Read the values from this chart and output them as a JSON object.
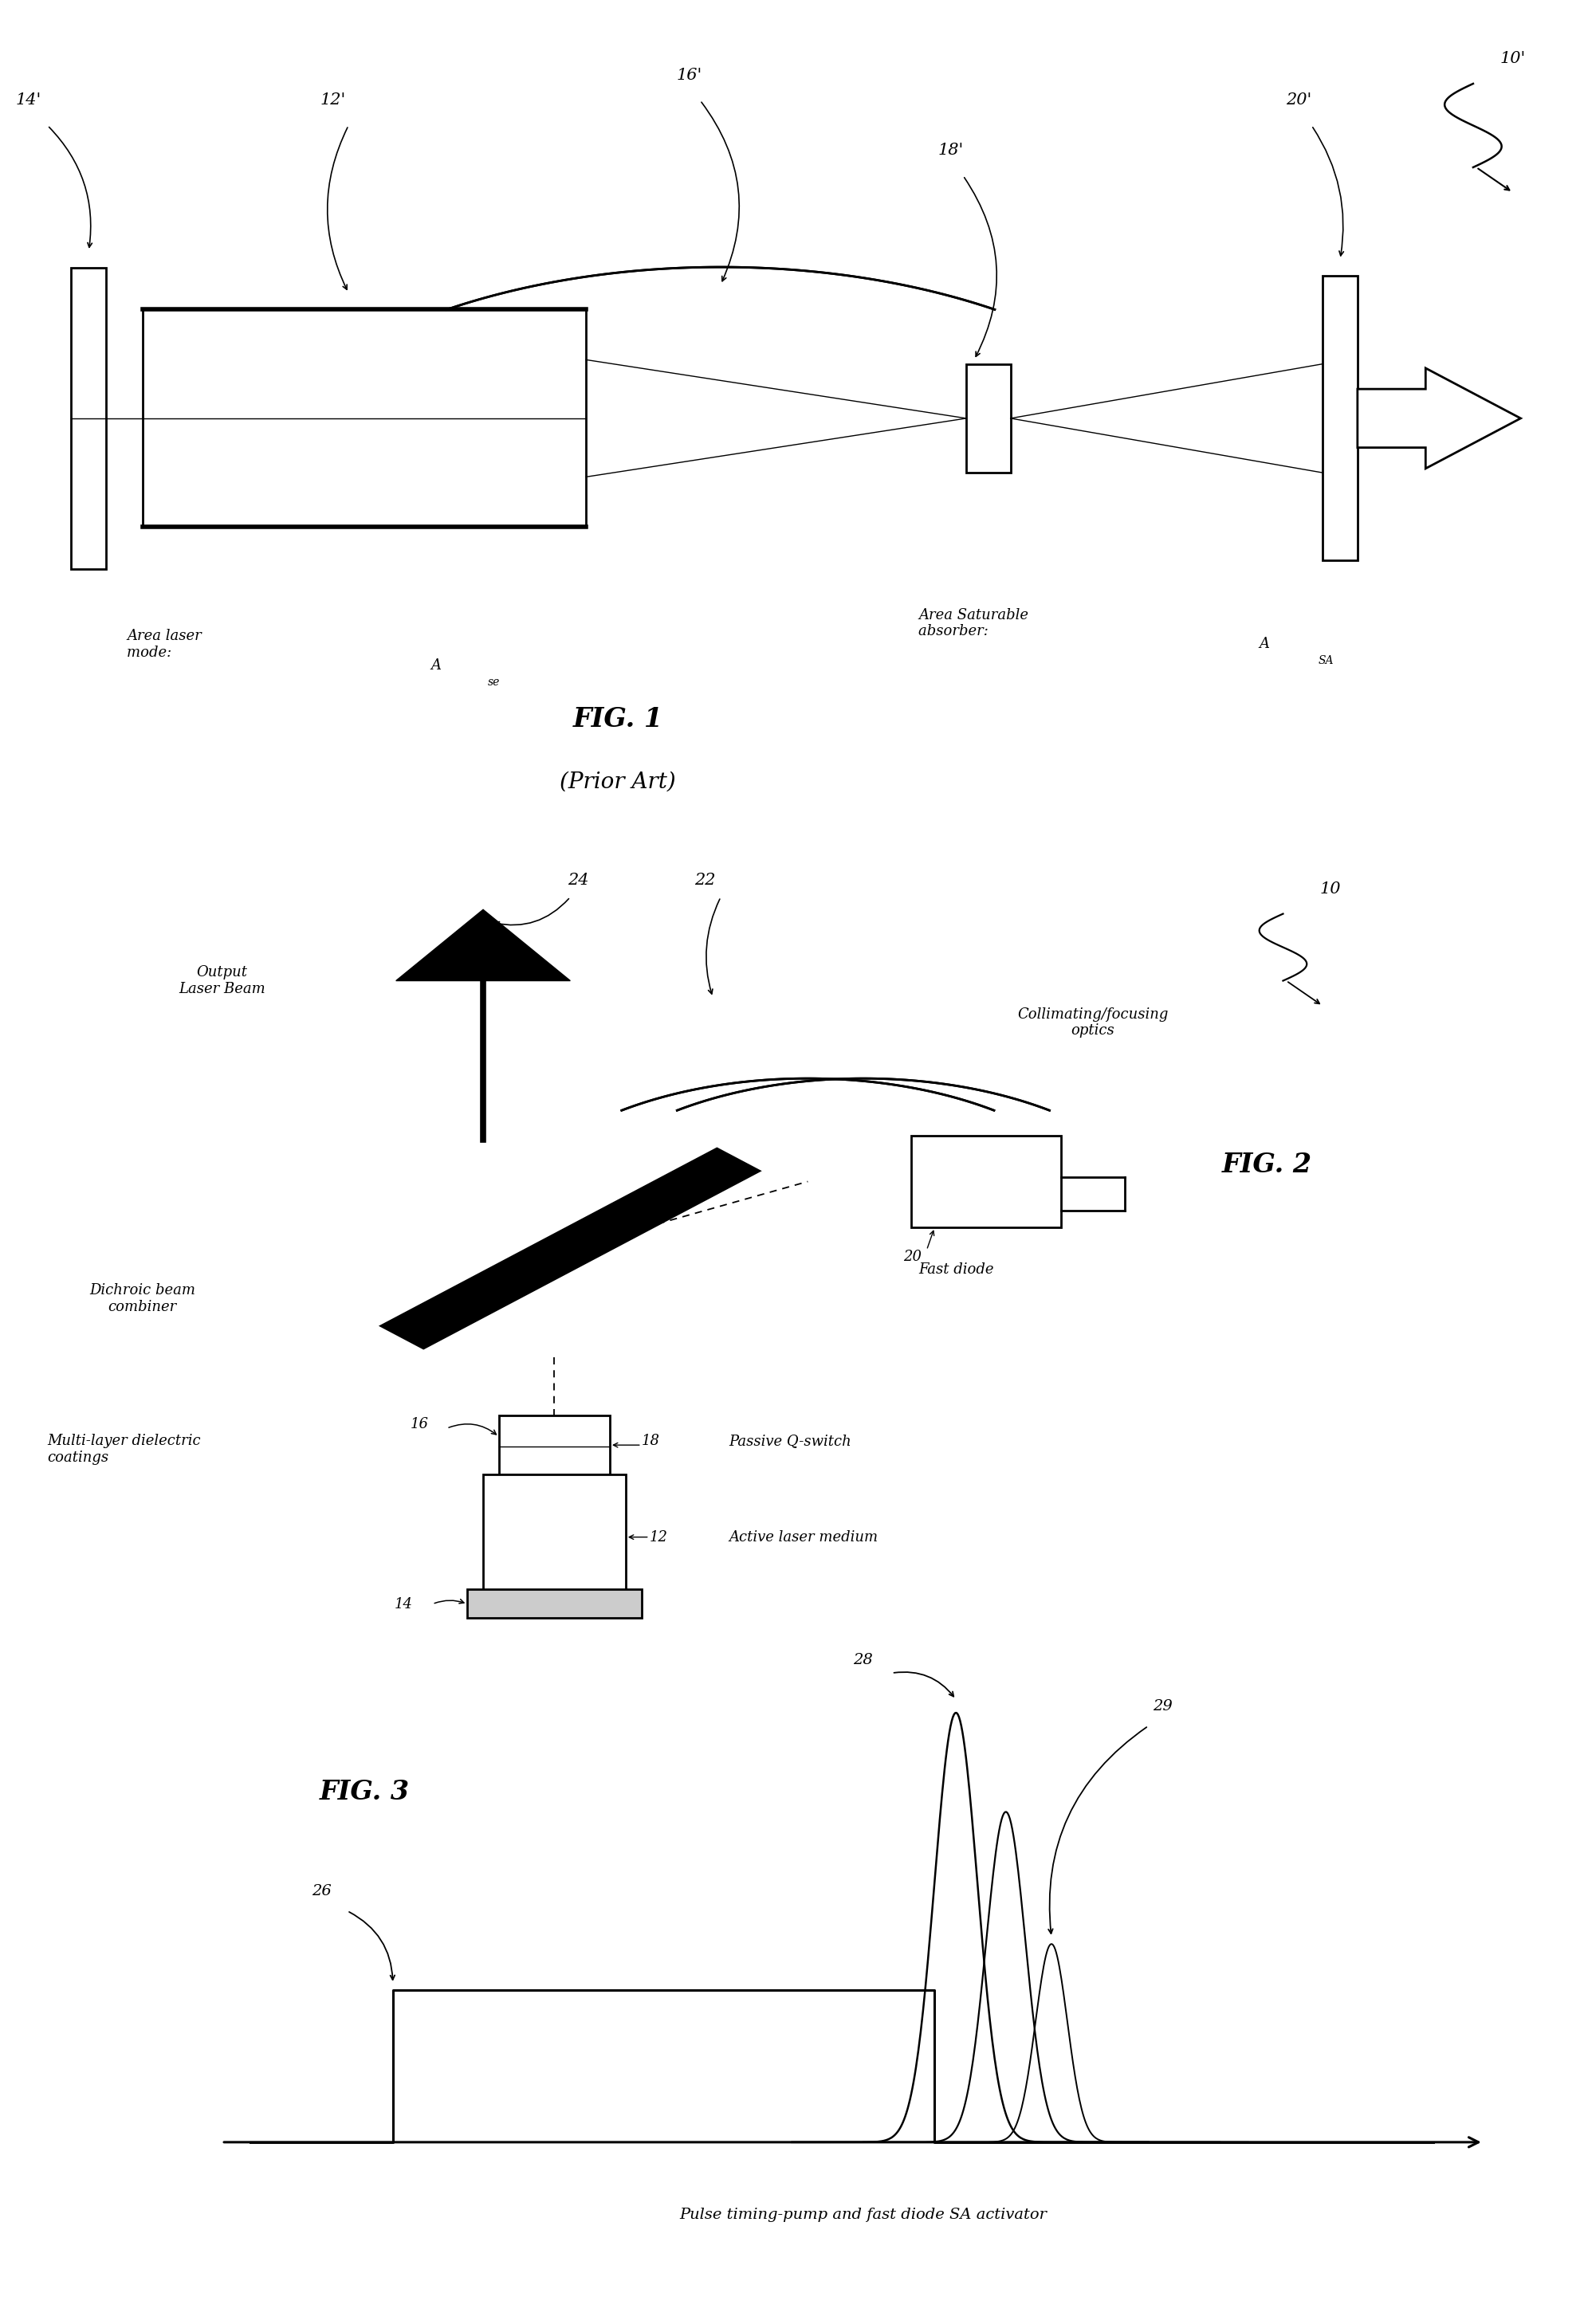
{
  "bg_color": "#ffffff",
  "line_color": "#000000",
  "fig_width": 19.87,
  "fig_height": 29.16,
  "fig1_title": "FIG. 1",
  "fig1_subtitle": "(Prior Art)",
  "fig2_title": "FIG. 2",
  "fig3_title": "FIG. 3",
  "fig3_xlabel": "Pulse timing-pump and fast diode SA activator",
  "labels": {
    "fig1_10prime": "10'",
    "fig1_14prime": "14'",
    "fig1_12prime": "12'",
    "fig1_16prime": "16'",
    "fig1_18prime": "18'",
    "fig1_20prime": "20'",
    "fig2_10": "10",
    "fig2_12": "12",
    "fig2_14": "14",
    "fig2_16": "16",
    "fig2_18": "18",
    "fig2_20": "20",
    "fig2_22": "22",
    "fig2_24": "24",
    "fig3_26": "26",
    "fig3_28": "28",
    "fig3_29": "29"
  }
}
